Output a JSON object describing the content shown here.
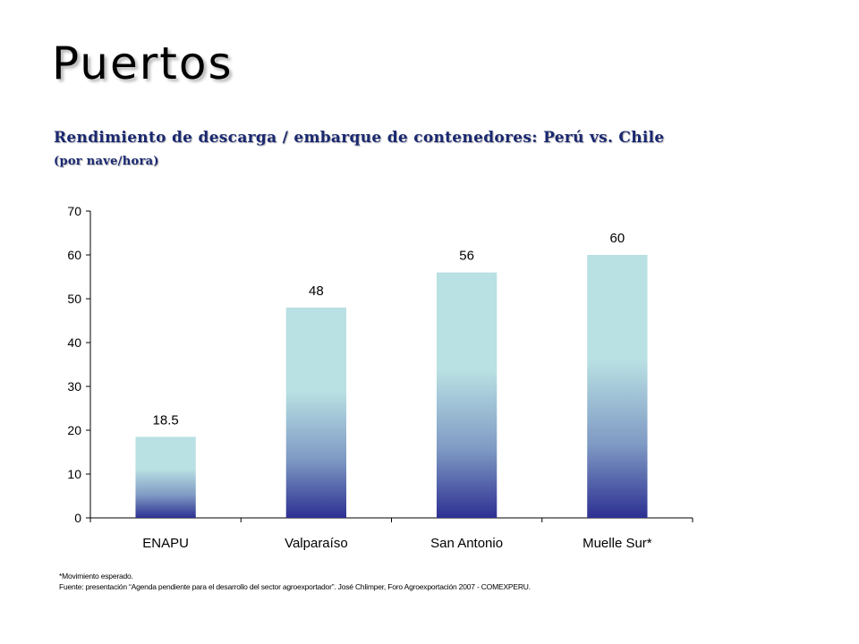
{
  "slide": {
    "title": "Puertos",
    "footnote": "*Movimiento esperado.",
    "source": "Fuente: presentación “Agenda pendiente para el desarrollo del sector agroexportador”. José Chlimper, Foro Agroexportación 2007 - COMEXPERU."
  },
  "chart_data": {
    "type": "bar",
    "title": "Rendimiento de descarga / embarque de contenedores: Perú vs. Chile",
    "subtitle": "(por nave/hora)",
    "xlabel": "",
    "ylabel": "",
    "categories": [
      "ENAPU",
      "Valparaíso",
      "San Antonio",
      "Muelle Sur*"
    ],
    "values": [
      18.5,
      48,
      56,
      60
    ],
    "value_labels": [
      "18.5",
      "48",
      "56",
      "60"
    ],
    "ylim": [
      0,
      70
    ],
    "yticks": [
      0,
      10,
      20,
      30,
      40,
      50,
      60,
      70
    ],
    "grid": false,
    "legend": "none",
    "colors": {
      "bar_top": "#b9e0e3",
      "bar_mid": "#7f9ac4",
      "bar_bottom": "#2d3092"
    }
  }
}
